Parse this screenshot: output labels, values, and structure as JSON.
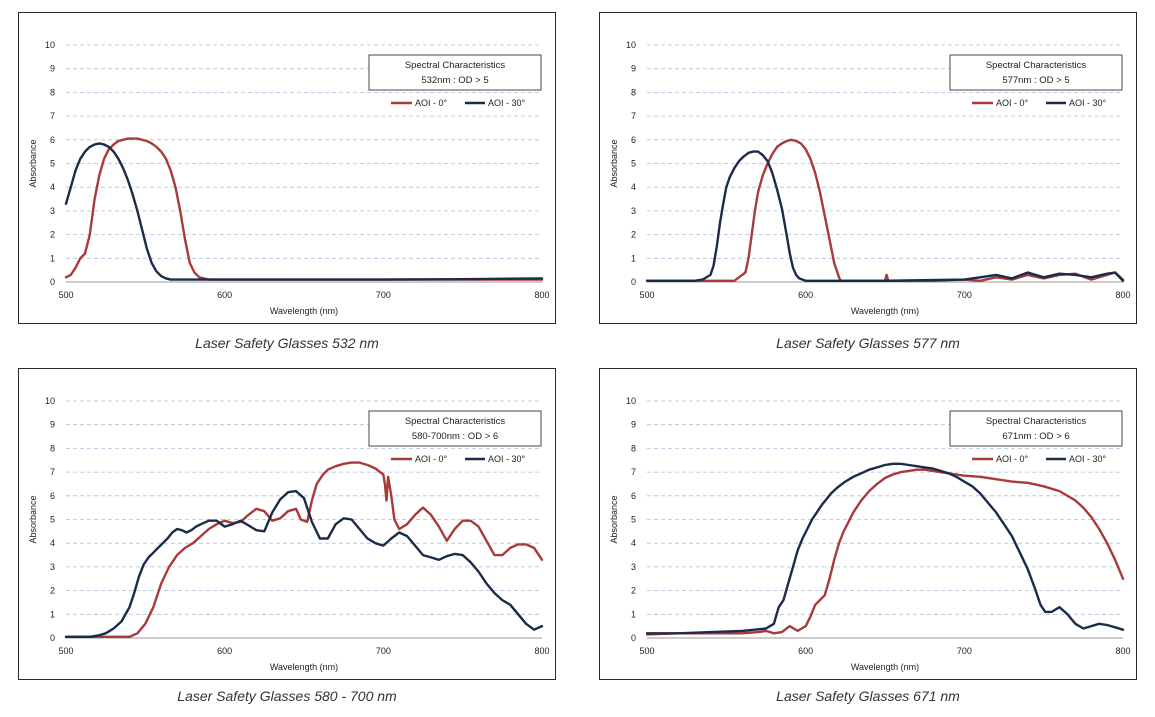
{
  "colors": {
    "aoi0": "#a83a3a",
    "aoi30": "#1b2b4a",
    "grid": "#a9c1df"
  },
  "chart_data": [
    {
      "type": "line",
      "caption": "Laser Safety Glasses 532 nm",
      "box_title": "Spectral Characteristics",
      "box_subtitle": "532nm : OD > 5",
      "xlabel": "Wavelength (nm)",
      "ylabel": "Absorbance",
      "xlim": [
        500,
        800
      ],
      "ylim": [
        0,
        10
      ],
      "x_ticks": [
        "500",
        "600",
        "700",
        "800"
      ],
      "y_ticks": [
        "0",
        "1",
        "2",
        "3",
        "4",
        "5",
        "6",
        "7",
        "8",
        "9",
        "10"
      ],
      "grid": true,
      "legend_position": "top-right",
      "series": [
        {
          "name": "AOI - 0°",
          "color": "#a83a3a",
          "x": [
            500,
            503,
            506,
            509,
            512,
            515,
            518,
            521,
            524,
            527,
            530,
            533,
            536,
            539,
            542,
            545,
            548,
            551,
            554,
            557,
            560,
            563,
            566,
            569,
            572,
            575,
            578,
            581,
            584,
            587,
            590,
            595,
            600,
            620,
            650,
            700,
            750,
            800
          ],
          "y": [
            0.2,
            0.3,
            0.6,
            1.0,
            1.2,
            2.0,
            3.5,
            4.5,
            5.2,
            5.6,
            5.8,
            5.95,
            6.0,
            6.05,
            6.05,
            6.05,
            6.0,
            5.95,
            5.85,
            5.7,
            5.5,
            5.2,
            4.7,
            4.0,
            3.0,
            1.8,
            0.8,
            0.4,
            0.2,
            0.15,
            0.1,
            0.1,
            0.1,
            0.1,
            0.1,
            0.1,
            0.1,
            0.1
          ]
        },
        {
          "name": "AOI - 30°",
          "color": "#1b2b4a",
          "x": [
            500,
            503,
            506,
            509,
            512,
            515,
            518,
            521,
            524,
            527,
            530,
            533,
            536,
            539,
            542,
            545,
            548,
            551,
            554,
            557,
            560,
            563,
            566,
            570,
            575,
            580,
            590,
            600,
            650,
            700,
            750,
            800
          ],
          "y": [
            3.3,
            4.0,
            4.7,
            5.2,
            5.5,
            5.7,
            5.8,
            5.85,
            5.8,
            5.7,
            5.5,
            5.2,
            4.8,
            4.3,
            3.7,
            3.0,
            2.2,
            1.4,
            0.8,
            0.45,
            0.25,
            0.15,
            0.1,
            0.1,
            0.1,
            0.1,
            0.1,
            0.1,
            0.1,
            0.1,
            0.12,
            0.15
          ]
        }
      ]
    },
    {
      "type": "line",
      "caption": "Laser Safety Glasses 577 nm",
      "box_title": "Spectral Characteristics",
      "box_subtitle": "577nm : OD > 5",
      "xlabel": "Wavelength (nm)",
      "ylabel": "Absorbance",
      "xlim": [
        500,
        800
      ],
      "ylim": [
        0,
        10
      ],
      "x_ticks": [
        "500",
        "600",
        "700",
        "800"
      ],
      "y_ticks": [
        "0",
        "1",
        "2",
        "3",
        "4",
        "5",
        "6",
        "7",
        "8",
        "9",
        "10"
      ],
      "grid": true,
      "legend_position": "top-right",
      "series": [
        {
          "name": "AOI - 0°",
          "color": "#a83a3a",
          "x": [
            500,
            540,
            550,
            555,
            558,
            560,
            562,
            564,
            566,
            568,
            570,
            573,
            576,
            579,
            582,
            585,
            588,
            591,
            594,
            597,
            600,
            603,
            606,
            609,
            612,
            615,
            618,
            621,
            622,
            650,
            651,
            652,
            680,
            700,
            710,
            720,
            730,
            740,
            750,
            760,
            770,
            780,
            790,
            795,
            800
          ],
          "y": [
            0.05,
            0.05,
            0.05,
            0.05,
            0.2,
            0.3,
            0.4,
            1.0,
            2.0,
            3.0,
            3.8,
            4.5,
            5.0,
            5.4,
            5.7,
            5.85,
            5.95,
            6.0,
            5.95,
            5.85,
            5.6,
            5.2,
            4.6,
            3.8,
            2.8,
            1.8,
            0.8,
            0.2,
            0.05,
            0.05,
            0.3,
            0.05,
            0.05,
            0.1,
            0.05,
            0.2,
            0.1,
            0.3,
            0.15,
            0.3,
            0.35,
            0.1,
            0.3,
            0.4,
            0.1
          ]
        },
        {
          "name": "AOI - 30°",
          "color": "#1b2b4a",
          "x": [
            500,
            530,
            535,
            540,
            542,
            544,
            546,
            548,
            550,
            552,
            555,
            558,
            561,
            564,
            567,
            570,
            573,
            576,
            579,
            582,
            585,
            588,
            590,
            592,
            594,
            596,
            598,
            600,
            605,
            650,
            700,
            710,
            720,
            730,
            740,
            750,
            760,
            770,
            780,
            790,
            795,
            800
          ],
          "y": [
            0.05,
            0.05,
            0.1,
            0.3,
            0.7,
            1.5,
            2.5,
            3.3,
            4.0,
            4.4,
            4.8,
            5.1,
            5.3,
            5.45,
            5.5,
            5.5,
            5.35,
            5.1,
            4.6,
            3.9,
            3.1,
            2.0,
            1.2,
            0.6,
            0.3,
            0.15,
            0.1,
            0.05,
            0.05,
            0.05,
            0.1,
            0.2,
            0.3,
            0.15,
            0.4,
            0.2,
            0.35,
            0.3,
            0.2,
            0.35,
            0.4,
            0.05
          ]
        }
      ]
    },
    {
      "type": "line",
      "caption": "Laser Safety Glasses 580 - 700 nm",
      "box_title": "Spectral Characteristics",
      "box_subtitle": "580-700nm : OD > 6",
      "xlabel": "Wavelength (nm)",
      "ylabel": "Absorbance",
      "xlim": [
        500,
        800
      ],
      "ylim": [
        0,
        10
      ],
      "x_ticks": [
        "500",
        "600",
        "700",
        "800"
      ],
      "y_ticks": [
        "0",
        "1",
        "2",
        "3",
        "4",
        "5",
        "6",
        "7",
        "8",
        "9",
        "10"
      ],
      "grid": true,
      "legend_position": "top-right",
      "series": [
        {
          "name": "AOI - 0°",
          "color": "#a83a3a",
          "x": [
            500,
            530,
            540,
            545,
            550,
            555,
            560,
            565,
            570,
            575,
            580,
            585,
            590,
            595,
            600,
            605,
            610,
            615,
            620,
            625,
            630,
            635,
            640,
            645,
            648,
            652,
            655,
            658,
            662,
            665,
            670,
            675,
            680,
            685,
            690,
            695,
            700,
            701,
            702,
            703,
            705,
            707,
            710,
            715,
            720,
            725,
            730,
            735,
            740,
            745,
            750,
            755,
            760,
            765,
            770,
            775,
            780,
            785,
            790,
            795,
            800
          ],
          "y": [
            0.05,
            0.05,
            0.05,
            0.2,
            0.6,
            1.3,
            2.3,
            3.0,
            3.5,
            3.8,
            4.0,
            4.3,
            4.6,
            4.8,
            4.95,
            4.85,
            4.9,
            5.2,
            5.45,
            5.35,
            4.95,
            5.05,
            5.35,
            5.45,
            5.0,
            4.9,
            5.8,
            6.5,
            6.9,
            7.1,
            7.25,
            7.35,
            7.4,
            7.4,
            7.3,
            7.15,
            6.9,
            6.5,
            5.8,
            6.8,
            6.0,
            5.0,
            4.6,
            4.8,
            5.2,
            5.5,
            5.2,
            4.7,
            4.1,
            4.6,
            4.95,
            4.95,
            4.7,
            4.1,
            3.5,
            3.5,
            3.8,
            3.95,
            3.95,
            3.8,
            3.3
          ]
        },
        {
          "name": "AOI - 30°",
          "color": "#1b2b4a",
          "x": [
            500,
            515,
            520,
            525,
            530,
            535,
            540,
            543,
            546,
            549,
            552,
            555,
            558,
            561,
            564,
            567,
            570,
            573,
            576,
            579,
            582,
            585,
            590,
            595,
            600,
            605,
            610,
            615,
            620,
            625,
            630,
            635,
            640,
            645,
            650,
            655,
            660,
            665,
            670,
            675,
            680,
            685,
            690,
            695,
            700,
            705,
            710,
            715,
            720,
            725,
            730,
            735,
            740,
            745,
            750,
            755,
            760,
            765,
            770,
            775,
            780,
            785,
            790,
            795,
            800
          ],
          "y": [
            0.05,
            0.05,
            0.1,
            0.2,
            0.4,
            0.7,
            1.3,
            1.9,
            2.6,
            3.1,
            3.4,
            3.6,
            3.8,
            4.0,
            4.2,
            4.45,
            4.6,
            4.55,
            4.45,
            4.55,
            4.7,
            4.8,
            4.95,
            4.95,
            4.7,
            4.8,
            4.95,
            4.75,
            4.55,
            4.5,
            5.3,
            5.85,
            6.15,
            6.2,
            5.9,
            4.9,
            4.2,
            4.2,
            4.8,
            5.05,
            5.0,
            4.6,
            4.2,
            4.0,
            3.9,
            4.2,
            4.45,
            4.3,
            3.9,
            3.5,
            3.4,
            3.3,
            3.45,
            3.55,
            3.5,
            3.2,
            2.8,
            2.3,
            1.9,
            1.6,
            1.4,
            1.0,
            0.6,
            0.35,
            0.5
          ]
        }
      ]
    },
    {
      "type": "line",
      "caption": "Laser Safety Glasses 671 nm",
      "box_title": "Spectral Characteristics",
      "box_subtitle": "671nm : OD > 6",
      "xlabel": "Wavelength (nm)",
      "ylabel": "Absorbance",
      "xlim": [
        500,
        800
      ],
      "ylim": [
        0,
        10
      ],
      "x_ticks": [
        "500",
        "600",
        "700",
        "800"
      ],
      "y_ticks": [
        "0",
        "1",
        "2",
        "3",
        "4",
        "5",
        "6",
        "7",
        "8",
        "9",
        "10"
      ],
      "grid": true,
      "legend_position": "top-right",
      "series": [
        {
          "name": "AOI - 0°",
          "color": "#a83a3a",
          "x": [
            500,
            520,
            540,
            560,
            570,
            575,
            580,
            585,
            590,
            595,
            600,
            603,
            606,
            609,
            612,
            615,
            618,
            621,
            624,
            627,
            630,
            635,
            640,
            645,
            650,
            655,
            660,
            665,
            670,
            675,
            680,
            690,
            700,
            710,
            720,
            730,
            740,
            750,
            760,
            770,
            775,
            780,
            785,
            790,
            795,
            800
          ],
          "y": [
            0.15,
            0.2,
            0.2,
            0.2,
            0.25,
            0.3,
            0.2,
            0.25,
            0.5,
            0.3,
            0.5,
            0.9,
            1.4,
            1.6,
            1.8,
            2.5,
            3.3,
            4.0,
            4.5,
            4.9,
            5.3,
            5.8,
            6.2,
            6.5,
            6.75,
            6.9,
            7.0,
            7.05,
            7.1,
            7.1,
            7.05,
            6.95,
            6.85,
            6.8,
            6.7,
            6.6,
            6.55,
            6.4,
            6.2,
            5.8,
            5.5,
            5.1,
            4.6,
            4.0,
            3.3,
            2.5
          ]
        },
        {
          "name": "AOI - 30°",
          "color": "#1b2b4a",
          "x": [
            500,
            520,
            540,
            560,
            575,
            580,
            583,
            586,
            589,
            592,
            595,
            598,
            601,
            604,
            607,
            610,
            613,
            616,
            620,
            625,
            630,
            635,
            640,
            645,
            650,
            655,
            660,
            665,
            670,
            675,
            680,
            685,
            690,
            695,
            700,
            705,
            710,
            715,
            720,
            725,
            730,
            735,
            740,
            745,
            748,
            751,
            755,
            760,
            765,
            770,
            775,
            780,
            785,
            790,
            795,
            800
          ],
          "y": [
            0.2,
            0.2,
            0.25,
            0.3,
            0.4,
            0.6,
            1.3,
            1.6,
            2.3,
            3.0,
            3.7,
            4.2,
            4.6,
            5.0,
            5.3,
            5.6,
            5.85,
            6.1,
            6.35,
            6.6,
            6.8,
            6.95,
            7.1,
            7.2,
            7.3,
            7.35,
            7.35,
            7.3,
            7.25,
            7.2,
            7.15,
            7.05,
            6.95,
            6.8,
            6.6,
            6.4,
            6.1,
            5.7,
            5.3,
            4.8,
            4.3,
            3.6,
            2.9,
            2.0,
            1.4,
            1.1,
            1.1,
            1.3,
            1.0,
            0.6,
            0.4,
            0.5,
            0.6,
            0.55,
            0.45,
            0.35
          ]
        }
      ]
    }
  ]
}
